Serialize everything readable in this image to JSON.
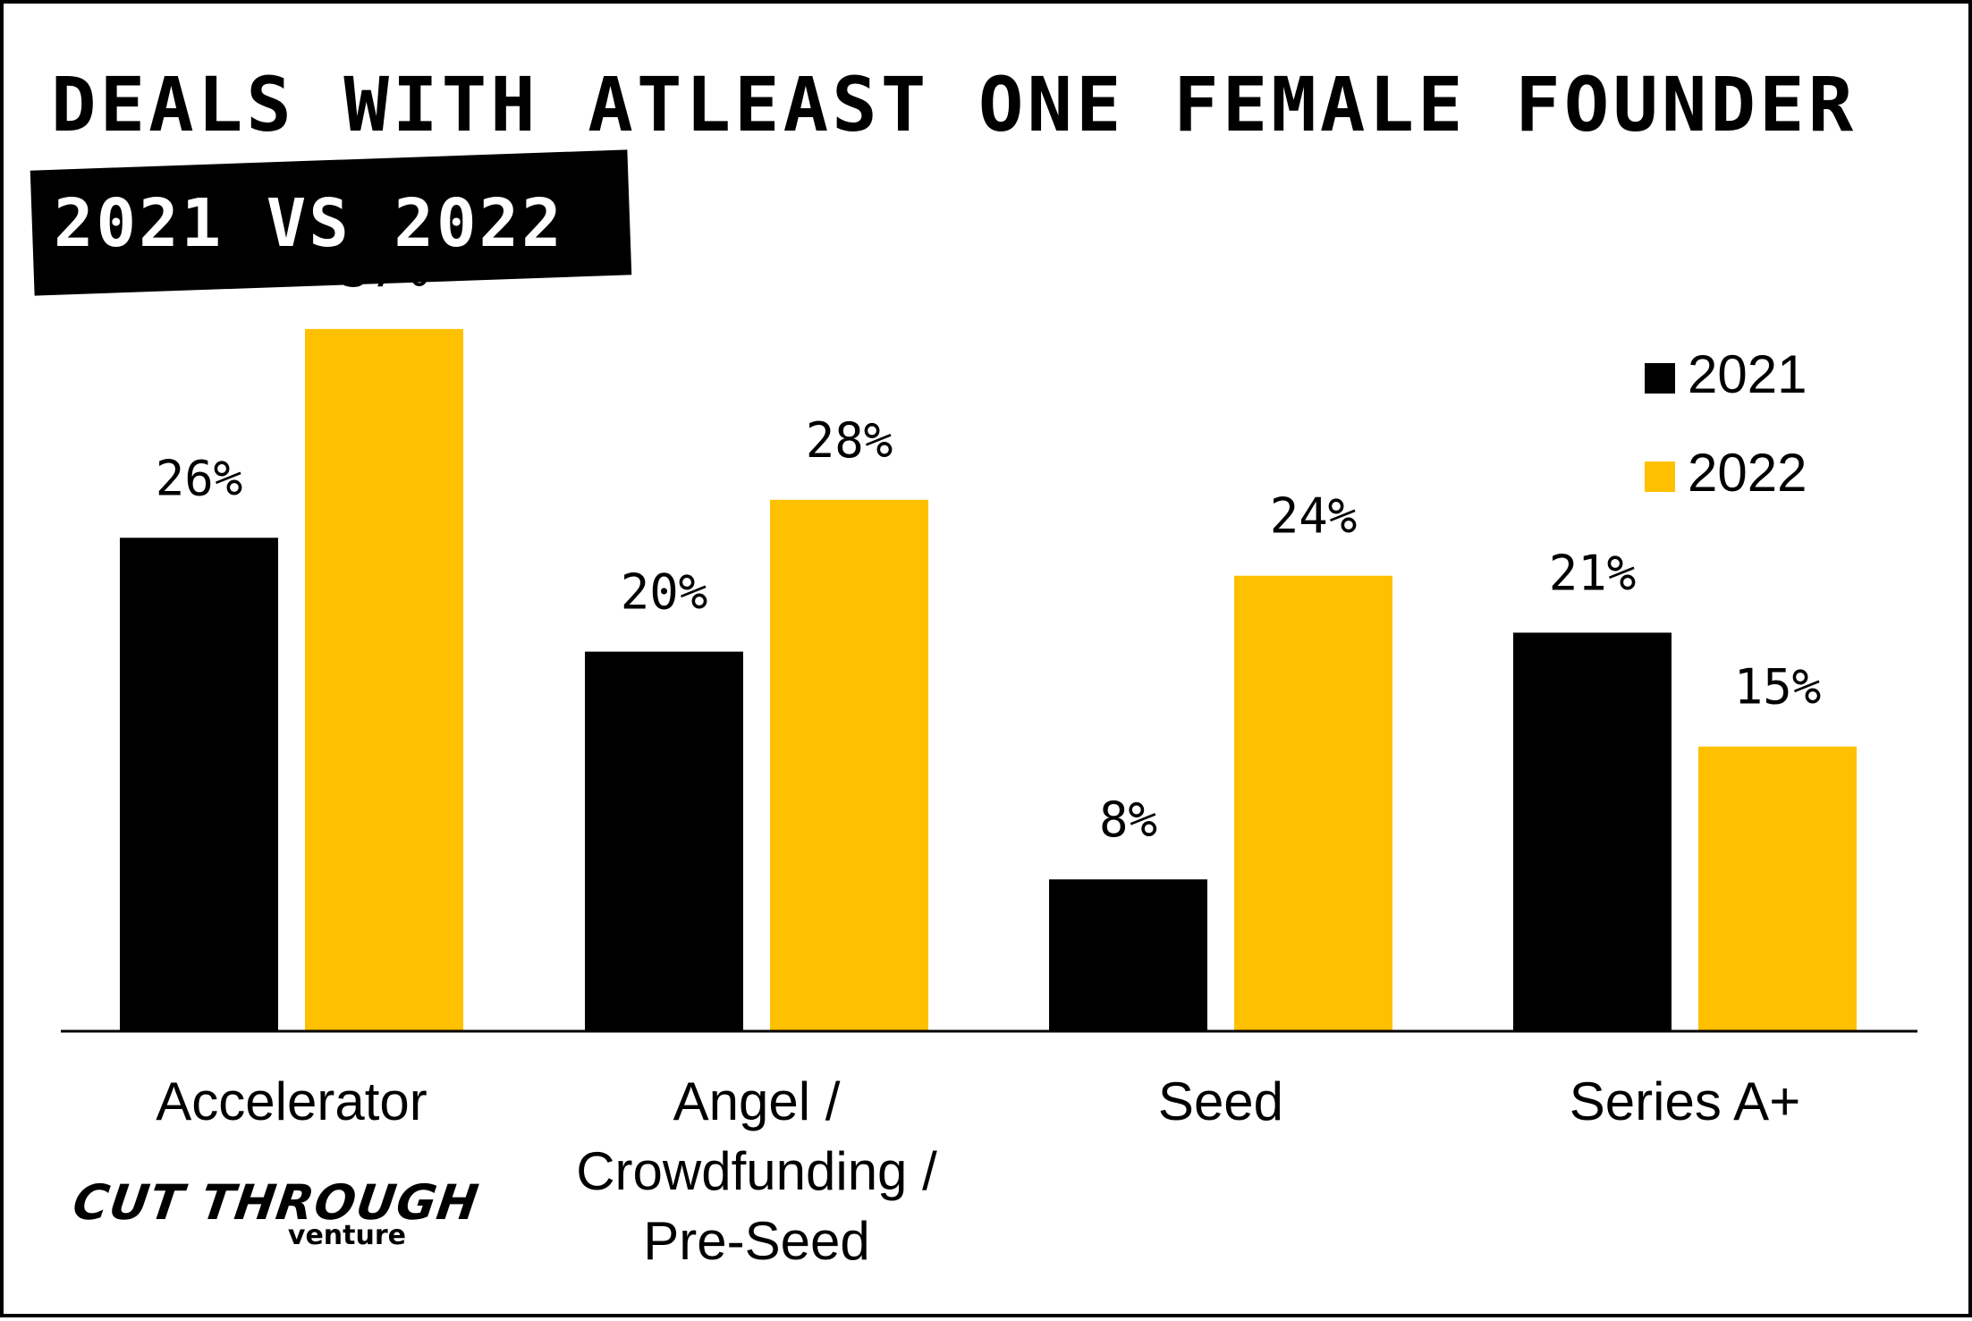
{
  "chart_data": {
    "type": "bar",
    "title": "DEALS WITH ATLEAST ONE FEMALE FOUNDER",
    "subtitle": "2021 VS 2022",
    "categories": [
      [
        "Accelerator"
      ],
      [
        "Angel /",
        "Crowdfunding /",
        "Pre-Seed"
      ],
      [
        "Seed"
      ],
      [
        "Series A+"
      ]
    ],
    "series": [
      {
        "name": "2021",
        "color": "#000000",
        "values": [
          26,
          20,
          8,
          21
        ],
        "labels": [
          "26%",
          "20%",
          "8%",
          "21%"
        ]
      },
      {
        "name": "2022",
        "color": "#FFC000",
        "values": [
          37,
          28,
          24,
          15
        ],
        "labels": [
          "37%",
          "28%",
          "24%",
          "15%"
        ]
      }
    ],
    "ylim": [
      0,
      40
    ],
    "legend_position": "top-right",
    "grid": false,
    "xlabel": "",
    "ylabel": ""
  },
  "logo": {
    "main": "CUT THROUGH",
    "sub": "venture"
  }
}
